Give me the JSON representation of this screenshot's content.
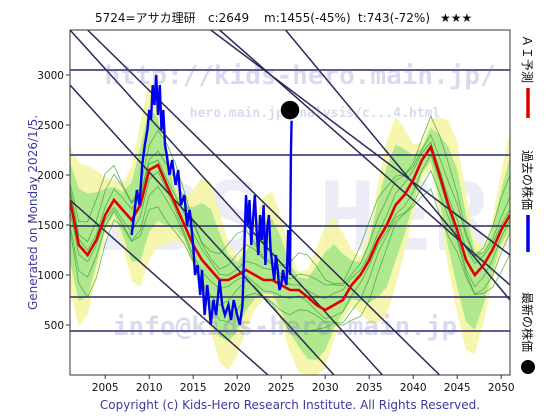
{
  "header": {
    "title": "5724=アサカ理研",
    "close": "c:2649",
    "min": "m:1455(-45%)",
    "target": "t:743(-72%)",
    "stars": "★★★"
  },
  "ylabel_side": "Generated on Monday 2026/1/5.",
  "copyright": "Copyright (c) Kids-Hero Research Institute. All Rights Reserved.",
  "watermarks": {
    "url": "http://kids-hero.main.jp/",
    "analysis_url": "hero.main.jp/analysis/c...4.html",
    "email": "info@kids-hero.main.jp",
    "big": "KIDS HERO"
  },
  "legend": [
    {
      "label": "ＡＩ予測",
      "color": "#e00000",
      "marker": "line"
    },
    {
      "label": "過去の株価",
      "color": "#0000ee",
      "marker": "line"
    },
    {
      "label": "最新の株価",
      "color": "#000000",
      "marker": "dot"
    }
  ],
  "colors": {
    "bg_plot": "#ffffff",
    "band_outer": "#f4f4a0",
    "band_inner": "#a8e88a",
    "band_line": "#3aa03a",
    "prediction": "#e00000",
    "price": "#0000ee",
    "trend": "#2a2a5a",
    "hline": "#2a2a6a"
  },
  "chart_data": {
    "type": "line",
    "xlim": [
      2001,
      2051
    ],
    "ylim": [
      0,
      3450
    ],
    "xticks": [
      2005,
      2010,
      2015,
      2020,
      2025,
      2030,
      2035,
      2040,
      2045,
      2050
    ],
    "yticks": [
      500,
      1000,
      1500,
      2000,
      2500,
      3000
    ],
    "hlines": [
      3050,
      2200,
      1490,
      780,
      440
    ],
    "trend_lines": [
      [
        [
          2001,
          3450
        ],
        [
          2036.5,
          0
        ]
      ],
      [
        [
          2001,
          2900
        ],
        [
          2031,
          0
        ]
      ],
      [
        [
          2003,
          3450
        ],
        [
          2043,
          0
        ]
      ],
      [
        [
          2017,
          3450
        ],
        [
          2051,
          1200
        ]
      ],
      [
        [
          2018,
          3450
        ],
        [
          2051,
          900
        ]
      ],
      [
        [
          2025.5,
          3450
        ],
        [
          2051,
          750
        ]
      ],
      [
        [
          2001,
          1750
        ],
        [
          2023.5,
          0
        ]
      ]
    ],
    "series": [
      {
        "name": "ＡＩ予測",
        "color": "#e00000",
        "x": [
          2001,
          2002,
          2003,
          2004,
          2005,
          2006,
          2007,
          2008,
          2009,
          2010,
          2011,
          2012,
          2013,
          2014,
          2015,
          2016,
          2017,
          2018,
          2019,
          2020,
          2021,
          2022,
          2023,
          2024,
          2025,
          2026,
          2027,
          2028,
          2029,
          2030,
          2031,
          2032,
          2033,
          2034,
          2035,
          2036,
          2037,
          2038,
          2039,
          2040,
          2041,
          2042,
          2043,
          2044,
          2045,
          2046,
          2047,
          2048,
          2049,
          2050,
          2051
        ],
        "values": [
          1750,
          1300,
          1200,
          1350,
          1600,
          1750,
          1650,
          1550,
          1700,
          2050,
          2100,
          1900,
          1700,
          1500,
          1300,
          1150,
          1050,
          950,
          950,
          1000,
          1050,
          1000,
          950,
          950,
          900,
          850,
          850,
          780,
          700,
          650,
          700,
          750,
          900,
          1000,
          1150,
          1350,
          1500,
          1700,
          1800,
          1950,
          2150,
          2280,
          2000,
          1700,
          1450,
          1150,
          1000,
          1100,
          1250,
          1450,
          1600
        ]
      },
      {
        "name": "過去の株価",
        "color": "#0000ee",
        "x": [
          2008.0,
          2008.3,
          2008.6,
          2008.9,
          2009.2,
          2009.5,
          2009.8,
          2010.0,
          2010.2,
          2010.4,
          2010.6,
          2010.8,
          2011.0,
          2011.2,
          2011.4,
          2011.6,
          2011.8,
          2012.0,
          2012.3,
          2012.6,
          2013.0,
          2013.3,
          2013.6,
          2014.0,
          2014.3,
          2014.6,
          2015.0,
          2015.2,
          2015.5,
          2015.8,
          2016.0,
          2016.3,
          2016.6,
          2017.0,
          2017.3,
          2017.6,
          2018.0,
          2018.3,
          2018.6,
          2019.0,
          2019.3,
          2019.6,
          2020.0,
          2020.3,
          2020.6,
          2021.0,
          2021.2,
          2021.4,
          2021.6,
          2021.8,
          2022.0,
          2022.2,
          2022.4,
          2022.6,
          2022.8,
          2023.0,
          2023.2,
          2023.4,
          2023.6,
          2023.8,
          2024.0,
          2024.2,
          2024.4,
          2024.6,
          2024.8,
          2025.0,
          2025.2,
          2025.4,
          2025.6,
          2025.8,
          2026.0,
          2026.1,
          2026.2
        ],
        "values": [
          1400,
          1600,
          1850,
          1700,
          2100,
          2300,
          2450,
          2650,
          2550,
          2900,
          2700,
          3000,
          2600,
          2900,
          2450,
          2650,
          2300,
          2200,
          2000,
          2150,
          1900,
          2050,
          1700,
          1800,
          1500,
          1650,
          1300,
          1000,
          1100,
          800,
          1050,
          600,
          900,
          500,
          750,
          600,
          950,
          700,
          600,
          700,
          550,
          750,
          600,
          500,
          700,
          1800,
          1500,
          1750,
          1300,
          1550,
          1800,
          1450,
          1200,
          1600,
          1350,
          1700,
          1100,
          1450,
          1600,
          1250,
          1100,
          950,
          1200,
          1050,
          850,
          900,
          1050,
          950,
          900,
          1450,
          1000,
          2200,
          2649
        ]
      }
    ],
    "latest_point": {
      "x": 2026.0,
      "y": 2649
    }
  }
}
